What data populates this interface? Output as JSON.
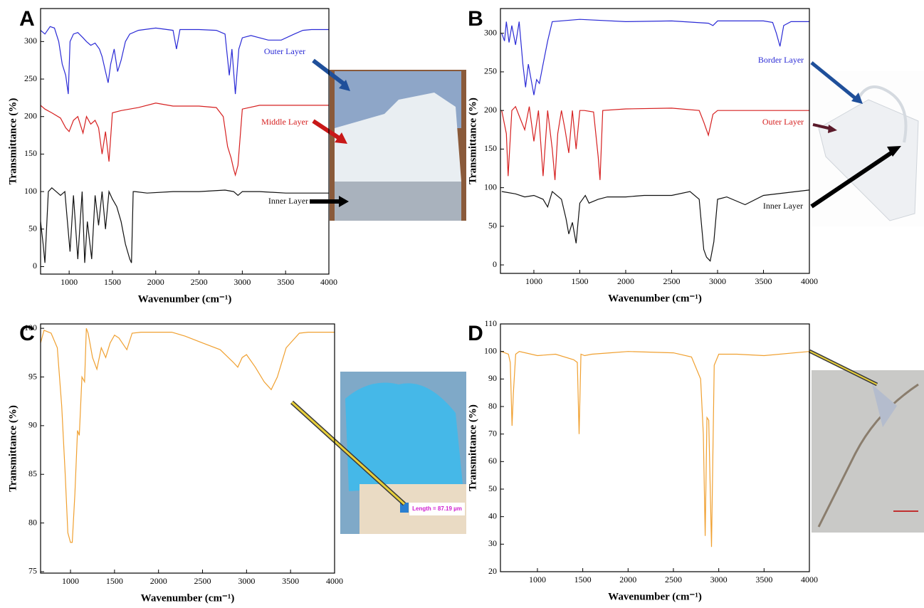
{
  "chart_data": [
    {
      "type": "line",
      "panel_label": "A",
      "x_label": "Wavenumber (cm⁻¹)",
      "y_label": "Transmittance (%)",
      "xlim": [
        670,
        4000
      ],
      "ylim": [
        -10,
        344
      ],
      "xticks": [
        1000,
        1500,
        2000,
        2500,
        3000,
        3500,
        4000
      ],
      "yticks": [
        0,
        50,
        100,
        150,
        200,
        250,
        300
      ],
      "series": [
        {
          "name": "Outer Layer",
          "color": "#2b2bd6",
          "x": [
            670,
            720,
            780,
            830,
            880,
            920,
            960,
            990,
            1010,
            1050,
            1100,
            1160,
            1200,
            1250,
            1300,
            1350,
            1380,
            1420,
            1450,
            1480,
            1520,
            1560,
            1600,
            1650,
            1700,
            1800,
            2000,
            2200,
            2240,
            2280,
            2500,
            2700,
            2800,
            2850,
            2880,
            2920,
            2960,
            3000,
            3100,
            3300,
            3450,
            3600,
            3700,
            3800,
            4000
          ],
          "values": [
            315,
            310,
            320,
            318,
            300,
            270,
            255,
            230,
            300,
            310,
            312,
            305,
            300,
            295,
            298,
            290,
            280,
            260,
            245,
            270,
            290,
            260,
            275,
            300,
            310,
            315,
            318,
            315,
            290,
            316,
            316,
            315,
            310,
            255,
            290,
            230,
            290,
            305,
            308,
            302,
            302,
            310,
            315,
            316,
            316
          ]
        },
        {
          "name": "Middle Layer",
          "color": "#d62020",
          "x": [
            670,
            720,
            800,
            900,
            960,
            1000,
            1050,
            1100,
            1160,
            1200,
            1250,
            1300,
            1340,
            1380,
            1420,
            1460,
            1500,
            1600,
            1800,
            2000,
            2200,
            2500,
            2700,
            2780,
            2830,
            2870,
            2900,
            2920,
            2950,
            3000,
            3200,
            3500,
            4000
          ],
          "values": [
            215,
            210,
            205,
            198,
            185,
            180,
            195,
            200,
            178,
            200,
            190,
            195,
            185,
            150,
            180,
            140,
            205,
            208,
            212,
            218,
            214,
            214,
            212,
            200,
            160,
            145,
            130,
            122,
            135,
            210,
            215,
            215,
            215
          ]
        },
        {
          "name": "Inner Layer",
          "color": "#111111",
          "x": [
            670,
            700,
            720,
            760,
            800,
            850,
            900,
            950,
            980,
            1010,
            1050,
            1100,
            1150,
            1180,
            1210,
            1260,
            1300,
            1340,
            1380,
            1420,
            1460,
            1500,
            1550,
            1600,
            1650,
            1700,
            1720,
            1740,
            1760,
            1900,
            2200,
            2500,
            2800,
            2900,
            2950,
            3000,
            3200,
            3500,
            4000
          ],
          "values": [
            60,
            30,
            5,
            100,
            105,
            100,
            95,
            100,
            60,
            20,
            95,
            10,
            100,
            5,
            60,
            10,
            95,
            55,
            100,
            50,
            100,
            90,
            80,
            60,
            30,
            10,
            5,
            100,
            100,
            98,
            100,
            100,
            102,
            100,
            95,
            100,
            100,
            98,
            98
          ]
        }
      ]
    },
    {
      "type": "line",
      "panel_label": "B",
      "x_label": "Wavenumber (cm⁻¹)",
      "y_label": "Transmittance (%)",
      "xlim": [
        636,
        4000
      ],
      "ylim": [
        -11,
        332
      ],
      "xticks": [
        1000,
        1500,
        2000,
        2500,
        3000,
        3500,
        4000
      ],
      "yticks": [
        0,
        50,
        100,
        150,
        200,
        250,
        300
      ],
      "series": [
        {
          "name": "Border Layer",
          "color": "#2b2bd6",
          "x": [
            650,
            680,
            700,
            730,
            760,
            800,
            840,
            880,
            910,
            940,
            970,
            1000,
            1030,
            1060,
            1100,
            1150,
            1200,
            1500,
            2000,
            2500,
            2900,
            2950,
            3000,
            3500,
            3600,
            3640,
            3680,
            3720,
            3800,
            4000
          ],
          "values": [
            300,
            290,
            315,
            288,
            310,
            285,
            315,
            260,
            230,
            260,
            240,
            220,
            240,
            235,
            260,
            290,
            315,
            318,
            315,
            316,
            313,
            310,
            316,
            316,
            314,
            300,
            283,
            310,
            315,
            315
          ]
        },
        {
          "name": "Outer Layer",
          "color": "#d62020",
          "x": [
            650,
            700,
            720,
            760,
            800,
            850,
            900,
            950,
            1000,
            1050,
            1100,
            1150,
            1200,
            1230,
            1260,
            1300,
            1340,
            1380,
            1420,
            1460,
            1500,
            1550,
            1650,
            1700,
            1720,
            1750,
            2000,
            2500,
            2800,
            2850,
            2900,
            2950,
            3000,
            3500,
            4000
          ],
          "values": [
            200,
            170,
            115,
            200,
            205,
            190,
            175,
            205,
            160,
            200,
            115,
            200,
            150,
            110,
            170,
            200,
            175,
            145,
            200,
            150,
            200,
            200,
            198,
            140,
            110,
            200,
            202,
            203,
            200,
            185,
            168,
            195,
            200,
            200,
            200
          ]
        },
        {
          "name": "Inner Layer",
          "color": "#111111",
          "x": [
            650,
            800,
            900,
            1000,
            1100,
            1150,
            1200,
            1300,
            1350,
            1380,
            1420,
            1460,
            1500,
            1560,
            1600,
            1700,
            1800,
            2000,
            2200,
            2500,
            2700,
            2800,
            2850,
            2880,
            2920,
            2960,
            3000,
            3100,
            3300,
            3500,
            4000
          ],
          "values": [
            95,
            92,
            88,
            90,
            85,
            75,
            95,
            85,
            60,
            40,
            55,
            28,
            80,
            90,
            80,
            85,
            88,
            88,
            90,
            90,
            95,
            85,
            20,
            10,
            5,
            30,
            85,
            88,
            78,
            90,
            97
          ]
        }
      ]
    },
    {
      "type": "line",
      "panel_label": "C",
      "x_label": "Wavenumber (cm⁻¹)",
      "y_label": "Transmittance (%)",
      "xlim": [
        660,
        4000
      ],
      "ylim": [
        74.85,
        100.45
      ],
      "xticks": [
        1000,
        1500,
        2000,
        2500,
        3000,
        3500,
        4000
      ],
      "yticks": [
        75,
        80,
        85,
        90,
        95,
        100
      ],
      "annotation": "Length = 87.19 µm",
      "series": [
        {
          "color": "#f0a030",
          "x": [
            660,
            700,
            780,
            850,
            900,
            940,
            970,
            1000,
            1020,
            1050,
            1080,
            1100,
            1130,
            1160,
            1180,
            1200,
            1250,
            1300,
            1350,
            1400,
            1450,
            1500,
            1550,
            1640,
            1700,
            1800,
            2000,
            2150,
            2300,
            2500,
            2700,
            2850,
            2900,
            2950,
            3000,
            3100,
            3200,
            3280,
            3350,
            3450,
            3600,
            3700,
            4000
          ],
          "values": [
            98.5,
            99.8,
            99.5,
            98,
            92,
            85,
            79,
            78,
            78,
            83,
            89.5,
            89,
            95,
            94.5,
            100,
            99.5,
            97,
            95.8,
            98,
            97,
            98.5,
            99.3,
            99,
            97.8,
            99.5,
            99.6,
            99.6,
            99.6,
            99.2,
            98.5,
            97.8,
            96.5,
            96,
            97,
            97.3,
            96,
            94.5,
            93.7,
            95,
            98,
            99.5,
            99.6,
            99.6
          ]
        }
      ]
    },
    {
      "type": "line",
      "panel_label": "D",
      "x_label": "Wavenumber (cm⁻¹)",
      "y_label": "Transmittance (%)",
      "xlim": [
        592,
        4000
      ],
      "ylim": [
        20,
        110
      ],
      "xticks": [
        1000,
        1500,
        2000,
        2500,
        3000,
        3500,
        4000
      ],
      "yticks": [
        20,
        30,
        40,
        50,
        60,
        70,
        80,
        90,
        100,
        110
      ],
      "series": [
        {
          "color": "#f0a030",
          "x": [
            600,
            680,
            700,
            720,
            735,
            760,
            800,
            1000,
            1200,
            1400,
            1440,
            1460,
            1480,
            1520,
            1600,
            1800,
            2000,
            2500,
            2700,
            2800,
            2830,
            2850,
            2870,
            2890,
            2920,
            2950,
            3000,
            3200,
            3500,
            4000
          ],
          "values": [
            100,
            99,
            96,
            73,
            85,
            99,
            100,
            98.5,
            99,
            97,
            96,
            70,
            99,
            98.5,
            99,
            99.5,
            100,
            99.5,
            98,
            90,
            70,
            33,
            76,
            75,
            29,
            95,
            99,
            99,
            98.5,
            100
          ]
        }
      ]
    }
  ]
}
